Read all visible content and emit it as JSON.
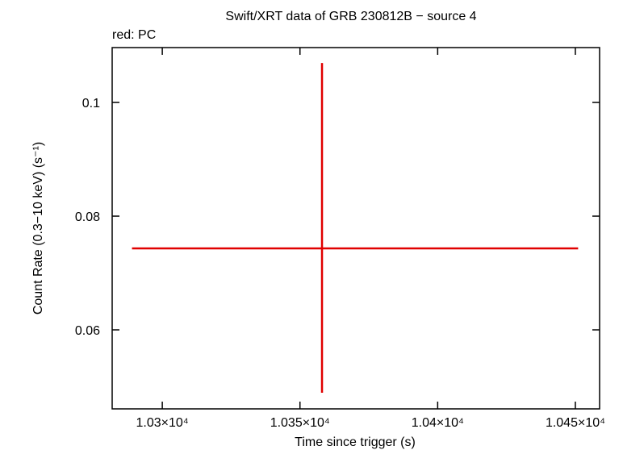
{
  "chart_data": {
    "type": "errorbar",
    "title": "Swift/XRT data of GRB 230812B − source 4",
    "subtitle": "red: PC",
    "x_label": "Time since trigger (s)",
    "y_label": "Count Rate (0.3−10 keV) (s⁻¹)",
    "series": [
      {
        "color": "#e00000",
        "x": [
          10358
        ],
        "values": [
          0.07433
        ],
        "xerr_low": [
          69
        ],
        "xerr_high": [
          93
        ],
        "yerr_low": [
          0.0254
        ],
        "yerr_high": [
          0.0326
        ]
      }
    ],
    "xlim": [
      10281.8,
      10458.8
    ],
    "xticks": [
      {
        "value": 10300,
        "label": "1.03×10⁴"
      },
      {
        "value": 10350,
        "label": "1.035×10⁴"
      },
      {
        "value": 10400,
        "label": "1.04×10⁴"
      },
      {
        "value": 10450,
        "label": "1.045×10⁴"
      }
    ],
    "ylim": [
      0.0461,
      0.10965
    ],
    "yticks": [
      0.06,
      0.08,
      0.1
    ]
  }
}
